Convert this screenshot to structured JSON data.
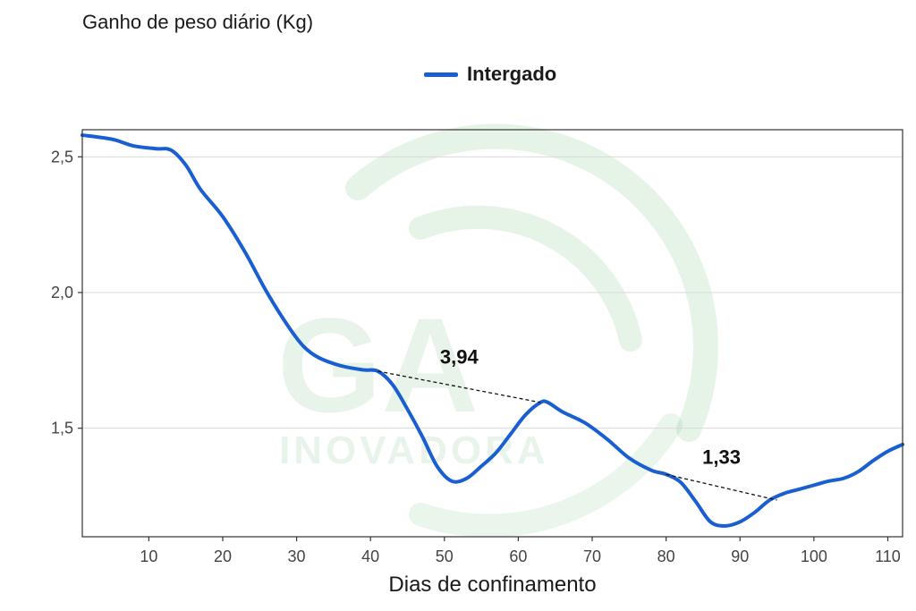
{
  "chart_data": {
    "type": "line",
    "title": "",
    "ylabel": "Ganho de peso diário (Kg)",
    "xlabel": "Dias de confinamento",
    "xlim": [
      1,
      112
    ],
    "ylim": [
      1.1,
      2.6
    ],
    "x_ticks": [
      10,
      20,
      30,
      40,
      50,
      60,
      70,
      80,
      90,
      100,
      110
    ],
    "y_ticks": [
      {
        "value": 1.5,
        "label": "1,5"
      },
      {
        "value": 2.0,
        "label": "2,0"
      },
      {
        "value": 2.5,
        "label": "2,5"
      }
    ],
    "grid": "horizontal",
    "legend_position": "top-center",
    "series": [
      {
        "name": "Intergado",
        "color": "#1a5fd1",
        "points": [
          [
            1,
            2.58
          ],
          [
            5,
            2.565
          ],
          [
            8,
            2.54
          ],
          [
            11,
            2.53
          ],
          [
            13,
            2.525
          ],
          [
            15,
            2.47
          ],
          [
            17,
            2.38
          ],
          [
            20,
            2.28
          ],
          [
            23,
            2.15
          ],
          [
            26,
            2.0
          ],
          [
            29,
            1.87
          ],
          [
            31,
            1.8
          ],
          [
            33,
            1.76
          ],
          [
            36,
            1.73
          ],
          [
            39,
            1.715
          ],
          [
            41,
            1.71
          ],
          [
            43,
            1.66
          ],
          [
            45,
            1.57
          ],
          [
            47,
            1.47
          ],
          [
            49,
            1.36
          ],
          [
            51,
            1.305
          ],
          [
            53,
            1.315
          ],
          [
            55,
            1.36
          ],
          [
            57,
            1.41
          ],
          [
            59,
            1.48
          ],
          [
            61,
            1.55
          ],
          [
            63,
            1.595
          ],
          [
            64,
            1.595
          ],
          [
            66,
            1.56
          ],
          [
            69,
            1.52
          ],
          [
            72,
            1.46
          ],
          [
            75,
            1.39
          ],
          [
            78,
            1.345
          ],
          [
            80,
            1.33
          ],
          [
            82,
            1.3
          ],
          [
            84,
            1.23
          ],
          [
            86,
            1.155
          ],
          [
            88,
            1.14
          ],
          [
            90,
            1.155
          ],
          [
            92,
            1.19
          ],
          [
            94,
            1.235
          ],
          [
            96,
            1.26
          ],
          [
            98,
            1.275
          ],
          [
            100,
            1.29
          ],
          [
            102,
            1.305
          ],
          [
            104,
            1.315
          ],
          [
            106,
            1.34
          ],
          [
            108,
            1.38
          ],
          [
            110,
            1.415
          ],
          [
            112,
            1.44
          ]
        ]
      }
    ],
    "trend_lines": [
      {
        "label": "3,94",
        "from": [
          41,
          1.71
        ],
        "to": [
          63,
          1.595
        ]
      },
      {
        "label": "1,33",
        "from": [
          80,
          1.33
        ],
        "to": [
          95,
          1.235
        ]
      }
    ],
    "watermark": {
      "text": "GA INOVADORA",
      "color": "#2e9e3a"
    }
  }
}
